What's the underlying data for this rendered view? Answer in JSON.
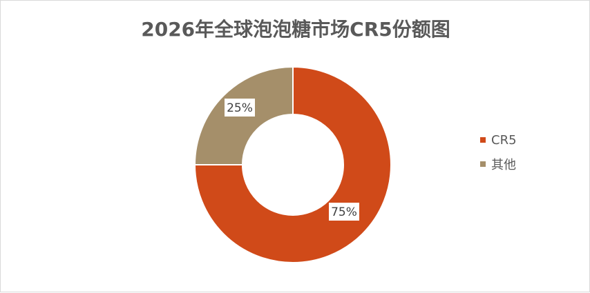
{
  "chart_data": {
    "type": "pie",
    "title": "2026年全球泡泡糖市场CR5份额图",
    "donut": true,
    "legend_position": "right",
    "series": [
      {
        "name": "CR5",
        "value": 75,
        "label": "75%",
        "color": "#d04a19"
      },
      {
        "name": "其他",
        "value": 25,
        "label": "25%",
        "color": "#a58f6a"
      }
    ]
  }
}
